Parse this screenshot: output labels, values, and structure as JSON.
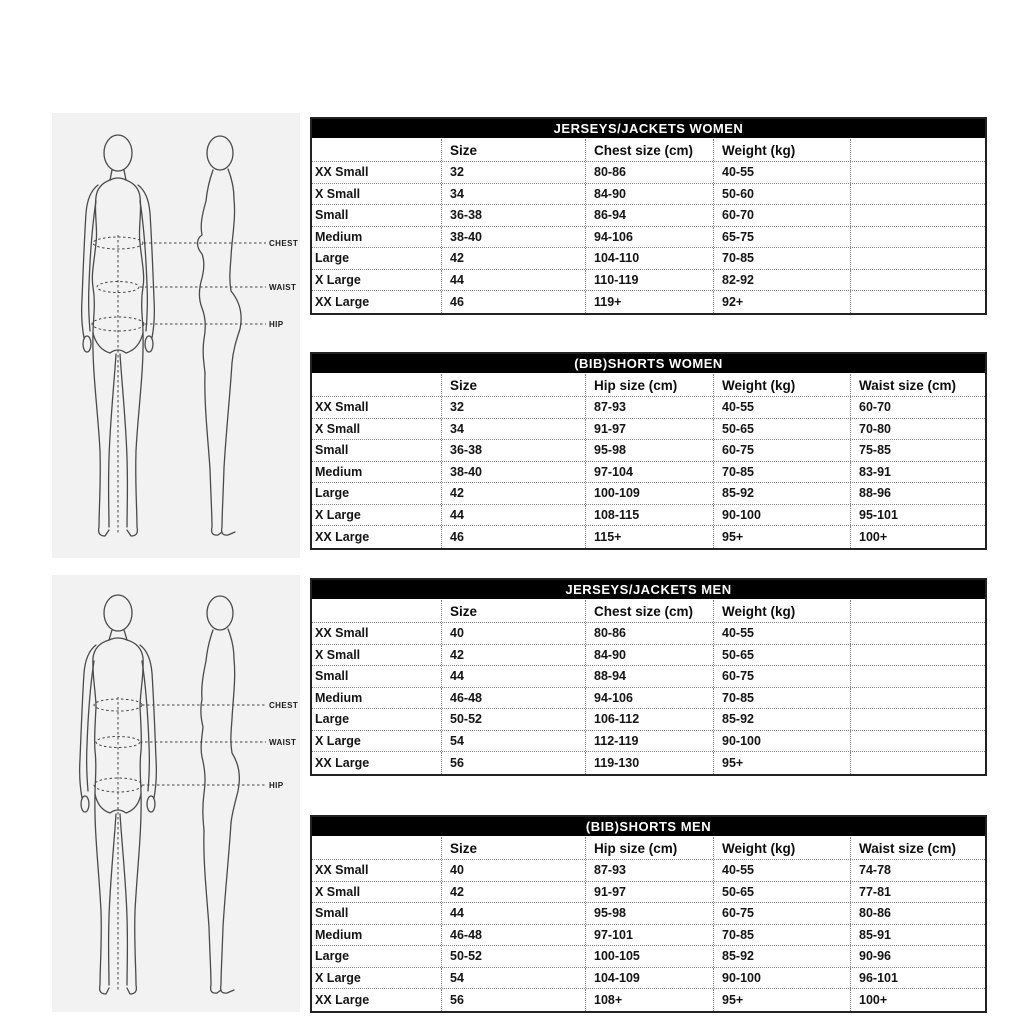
{
  "page": {
    "background": "#ffffff"
  },
  "colors": {
    "table_title_bg": "#000000",
    "table_title_text": "#ffffff",
    "panel_bg": "#f3f2f2",
    "text": "#141414",
    "dotted_line": "#868686"
  },
  "diagrams": [
    {
      "id": "women",
      "labels": [
        "CHEST",
        "WAIST",
        "HIP"
      ]
    },
    {
      "id": "men",
      "labels": [
        "CHEST",
        "WAIST",
        "HIP"
      ]
    }
  ],
  "tables": [
    {
      "title": "JERSEYS/JACKETS WOMEN",
      "columns": [
        "",
        "Size",
        "Chest size (cm)",
        "Weight (kg)",
        ""
      ],
      "rows": [
        [
          "XX Small",
          "32",
          "80-86",
          "40-55",
          ""
        ],
        [
          "X Small",
          "34",
          "84-90",
          "50-60",
          ""
        ],
        [
          "Small",
          "36-38",
          "86-94",
          "60-70",
          ""
        ],
        [
          "Medium",
          "38-40",
          "94-106",
          "65-75",
          ""
        ],
        [
          "Large",
          "42",
          "104-110",
          "70-85",
          ""
        ],
        [
          "X Large",
          "44",
          "110-119",
          "82-92",
          ""
        ],
        [
          "XX Large",
          "46",
          "119+",
          "92+",
          ""
        ]
      ]
    },
    {
      "title": "(BIB)SHORTS WOMEN",
      "columns": [
        "",
        "Size",
        "Hip size (cm)",
        "Weight (kg)",
        "Waist size (cm)"
      ],
      "rows": [
        [
          "XX Small",
          "32",
          "87-93",
          "40-55",
          "60-70"
        ],
        [
          "X Small",
          "34",
          "91-97",
          "50-65",
          "70-80"
        ],
        [
          "Small",
          "36-38",
          "95-98",
          "60-75",
          "75-85"
        ],
        [
          "Medium",
          "38-40",
          "97-104",
          "70-85",
          "83-91"
        ],
        [
          "Large",
          "42",
          "100-109",
          "85-92",
          "88-96"
        ],
        [
          "X Large",
          "44",
          "108-115",
          "90-100",
          "95-101"
        ],
        [
          "XX Large",
          "46",
          "115+",
          "95+",
          "100+"
        ]
      ]
    },
    {
      "title": "JERSEYS/JACKETS MEN",
      "columns": [
        "",
        "Size",
        "Chest size (cm)",
        "Weight (kg)",
        ""
      ],
      "rows": [
        [
          "XX Small",
          "40",
          "80-86",
          "40-55",
          ""
        ],
        [
          "X Small",
          "42",
          "84-90",
          "50-65",
          ""
        ],
        [
          "Small",
          "44",
          "88-94",
          "60-75",
          ""
        ],
        [
          "Medium",
          "46-48",
          "94-106",
          "70-85",
          ""
        ],
        [
          "Large",
          "50-52",
          "106-112",
          "85-92",
          ""
        ],
        [
          "X Large",
          "54",
          "112-119",
          "90-100",
          ""
        ],
        [
          "XX Large",
          "56",
          "119-130",
          "95+",
          ""
        ]
      ]
    },
    {
      "title": "(BIB)SHORTS MEN",
      "columns": [
        "",
        "Size",
        "Hip size (cm)",
        "Weight (kg)",
        "Waist size (cm)"
      ],
      "rows": [
        [
          "XX Small",
          "40",
          "87-93",
          "40-55",
          "74-78"
        ],
        [
          "X Small",
          "42",
          "91-97",
          "50-65",
          "77-81"
        ],
        [
          "Small",
          "44",
          "95-98",
          "60-75",
          "80-86"
        ],
        [
          "Medium",
          "46-48",
          "97-101",
          "70-85",
          "85-91"
        ],
        [
          "Large",
          "50-52",
          "100-105",
          "85-92",
          "90-96"
        ],
        [
          "X Large",
          "54",
          "104-109",
          "90-100",
          "96-101"
        ],
        [
          "XX Large",
          "56",
          "108+",
          "95+",
          "100+"
        ]
      ]
    }
  ]
}
